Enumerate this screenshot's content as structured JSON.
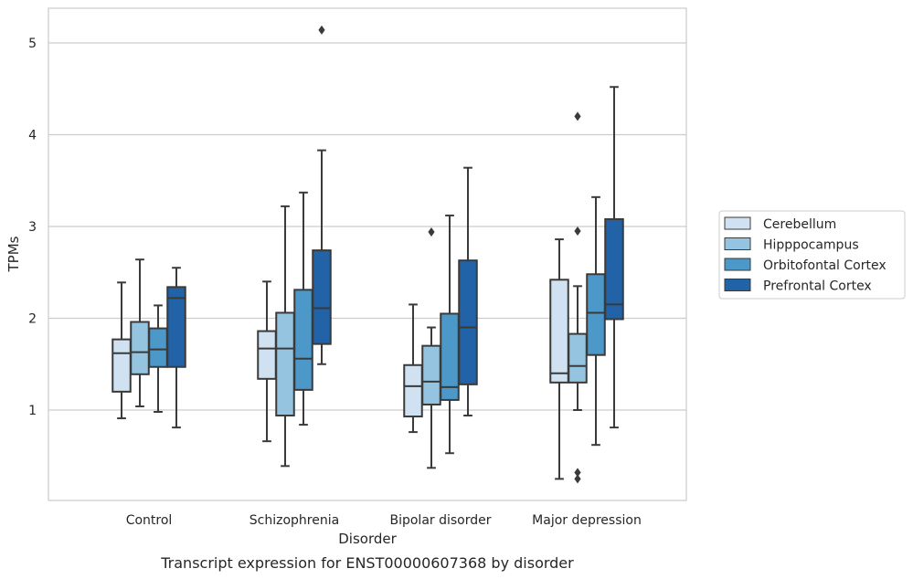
{
  "chart_data": {
    "type": "box",
    "xlabel": "Disorder",
    "ylabel": "TPMs",
    "caption": "Transcript expression for ENST00000607368 by disorder",
    "categories": [
      "Control",
      "Schizophrenia",
      "Bipolar disorder",
      "Major depression"
    ],
    "y_ticks": [
      1,
      2,
      3,
      4,
      5
    ],
    "ylim": [
      0.02,
      5.4
    ],
    "grid": "horizontal",
    "legend_position": "right",
    "series": [
      {
        "name": "Cerebellum",
        "color": "#d0e1f2",
        "boxes": [
          {
            "whisker_low": 0.91,
            "q1": 1.2,
            "median": 1.62,
            "q3": 1.77,
            "whisker_high": 2.39,
            "outliers": []
          },
          {
            "whisker_low": 0.66,
            "q1": 1.34,
            "median": 1.67,
            "q3": 1.86,
            "whisker_high": 2.4,
            "outliers": []
          },
          {
            "whisker_low": 0.76,
            "q1": 0.93,
            "median": 1.26,
            "q3": 1.49,
            "whisker_high": 2.15,
            "outliers": []
          },
          {
            "whisker_low": 0.25,
            "q1": 1.3,
            "median": 1.4,
            "q3": 2.42,
            "whisker_high": 2.86,
            "outliers": []
          }
        ]
      },
      {
        "name": "Hipppocampus",
        "color": "#94c4df",
        "boxes": [
          {
            "whisker_low": 1.04,
            "q1": 1.39,
            "median": 1.63,
            "q3": 1.96,
            "whisker_high": 2.64,
            "outliers": []
          },
          {
            "whisker_low": 0.39,
            "q1": 0.94,
            "median": 1.67,
            "q3": 2.06,
            "whisker_high": 3.22,
            "outliers": []
          },
          {
            "whisker_low": 0.37,
            "q1": 1.06,
            "median": 1.31,
            "q3": 1.7,
            "whisker_high": 1.9,
            "outliers": [
              2.94
            ]
          },
          {
            "whisker_low": 1.0,
            "q1": 1.3,
            "median": 1.48,
            "q3": 1.83,
            "whisker_high": 2.35,
            "outliers": [
              2.95,
              4.2,
              0.32,
              0.25
            ]
          }
        ]
      },
      {
        "name": "Orbitofontal Cortex",
        "color": "#4b98c9",
        "boxes": [
          {
            "whisker_low": 0.98,
            "q1": 1.47,
            "median": 1.66,
            "q3": 1.89,
            "whisker_high": 2.14,
            "outliers": []
          },
          {
            "whisker_low": 0.84,
            "q1": 1.22,
            "median": 1.56,
            "q3": 2.31,
            "whisker_high": 3.37,
            "outliers": []
          },
          {
            "whisker_low": 0.53,
            "q1": 1.11,
            "median": 1.25,
            "q3": 2.05,
            "whisker_high": 3.12,
            "outliers": []
          },
          {
            "whisker_low": 0.62,
            "q1": 1.6,
            "median": 2.06,
            "q3": 2.48,
            "whisker_high": 3.32,
            "outliers": []
          }
        ]
      },
      {
        "name": "Prefrontal Cortex",
        "color": "#2163a6",
        "boxes": [
          {
            "whisker_low": 0.81,
            "q1": 1.47,
            "median": 2.22,
            "q3": 2.34,
            "whisker_high": 2.55,
            "outliers": []
          },
          {
            "whisker_low": 1.5,
            "q1": 1.72,
            "median": 2.11,
            "q3": 2.74,
            "whisker_high": 3.83,
            "outliers": [
              5.14
            ]
          },
          {
            "whisker_low": 0.94,
            "q1": 1.28,
            "median": 1.9,
            "q3": 2.63,
            "whisker_high": 3.64,
            "outliers": []
          },
          {
            "whisker_low": 0.81,
            "q1": 1.99,
            "median": 2.15,
            "q3": 3.08,
            "whisker_high": 4.52,
            "outliers": []
          }
        ]
      }
    ]
  }
}
